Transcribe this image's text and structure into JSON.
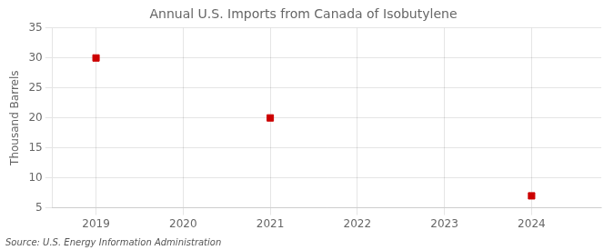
{
  "chart_data": {
    "type": "scatter",
    "title": "Annual U.S. Imports from Canada of Isobutylene",
    "ylabel": "Thousand Barrels",
    "annotation": "Source: U.S. Energy Information Administration",
    "x": [
      2019,
      2021,
      2024
    ],
    "values": [
      30,
      20,
      7
    ],
    "color": "#cc0000",
    "marker": "square",
    "xlim": [
      2018.5,
      2024.8
    ],
    "xticks": [
      2019,
      2020,
      2021,
      2022,
      2023,
      2024
    ],
    "ylim": [
      5,
      35
    ],
    "yticks": [
      5,
      10,
      15,
      20,
      25,
      30,
      35
    ],
    "grid": true
  }
}
